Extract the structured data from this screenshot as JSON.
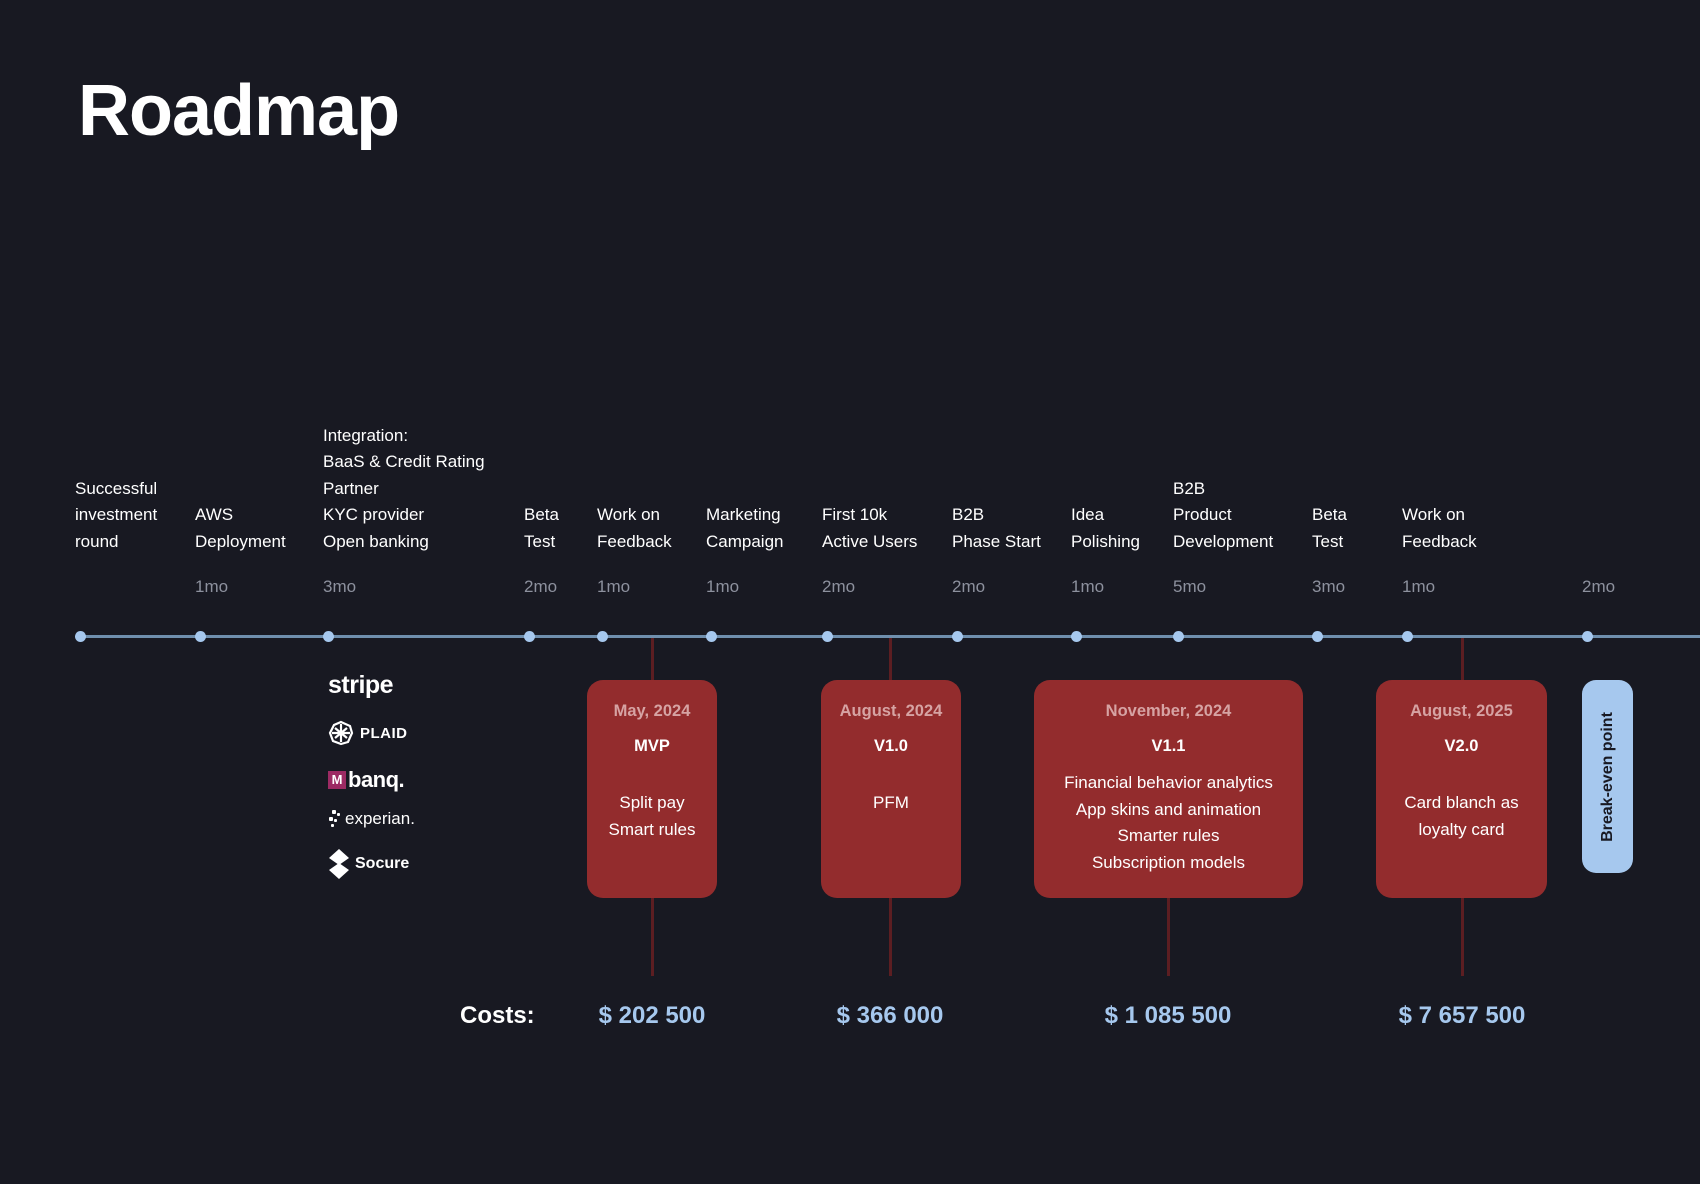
{
  "title": "Roadmap",
  "milestones": [
    {
      "label": "Successful\ninvestment\nround",
      "duration": ""
    },
    {
      "label": "AWS\nDeployment",
      "duration": "1mo"
    },
    {
      "label": "Integration:\nBaaS & Credit Rating\nPartner\nKYC provider\nOpen banking",
      "duration": "3mo"
    },
    {
      "label": "Beta\nTest",
      "duration": "2mo"
    },
    {
      "label": "Work on\nFeedback",
      "duration": "1mo"
    },
    {
      "label": "Marketing\nCampaign",
      "duration": "1mo"
    },
    {
      "label": "First 10k\nActive Users",
      "duration": "2mo"
    },
    {
      "label": "B2B\nPhase Start",
      "duration": "2mo"
    },
    {
      "label": "Idea\nPolishing",
      "duration": "1mo"
    },
    {
      "label": "B2B\nProduct\nDevelopment",
      "duration": "5mo"
    },
    {
      "label": "Beta\nTest",
      "duration": "3mo"
    },
    {
      "label": "Work on\nFeedback",
      "duration": "1mo"
    },
    {
      "label": "",
      "duration": "2mo"
    }
  ],
  "partners": [
    {
      "name": "stripe",
      "icon": "stripe-logo"
    },
    {
      "name": "PLAID",
      "icon": "plaid-logo"
    },
    {
      "name": "banq.",
      "icon": "mbanq-logo",
      "mark": "M"
    },
    {
      "name": "experian.",
      "icon": "experian-logo"
    },
    {
      "name": "Socure",
      "icon": "socure-logo"
    }
  ],
  "releases": [
    {
      "date": "May, 2024",
      "version": "MVP",
      "features": "Split pay\nSmart rules",
      "cost": "$ 202 500"
    },
    {
      "date": "August, 2024",
      "version": "V1.0",
      "features": "PFM",
      "cost": "$ 366 000"
    },
    {
      "date": "November, 2024",
      "version": "V1.1",
      "features": "Financial behavior analytics\nApp skins and animation\nSmarter rules\nSubscription models",
      "cost": "$ 1 085 500"
    },
    {
      "date": "August, 2025",
      "version": "V2.0",
      "features": "Card blanch as\nloyalty card",
      "cost": "$ 7 657 500"
    }
  ],
  "breakeven": "Break-even point",
  "costs_label": "Costs:",
  "colors": {
    "background": "#181922",
    "timeline": "#6f8fae",
    "dot": "#a6c8ee",
    "release_box": "#932c2d",
    "connector": "#5c1e22",
    "cost_text": "#a6c8ee",
    "duration_text": "#8d919e"
  }
}
